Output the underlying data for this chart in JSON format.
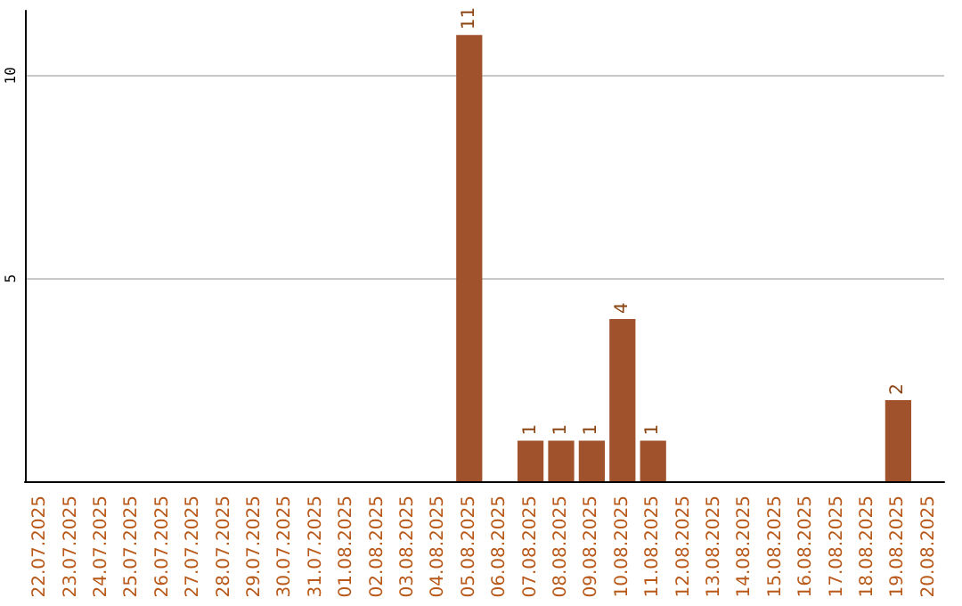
{
  "chart_data": {
    "type": "bar",
    "categories": [
      "22.07.2025",
      "23.07.2025",
      "24.07.2025",
      "25.07.2025",
      "26.07.2025",
      "27.07.2025",
      "28.07.2025",
      "29.07.2025",
      "30.07.2025",
      "31.07.2025",
      "01.08.2025",
      "02.08.2025",
      "03.08.2025",
      "04.08.2025",
      "05.08.2025",
      "06.08.2025",
      "07.08.2025",
      "08.08.2025",
      "09.08.2025",
      "10.08.2025",
      "11.08.2025",
      "12.08.2025",
      "13.08.2025",
      "14.08.2025",
      "15.08.2025",
      "16.08.2025",
      "17.08.2025",
      "18.08.2025",
      "19.08.2025",
      "20.08.2025"
    ],
    "values": [
      null,
      null,
      null,
      null,
      null,
      null,
      null,
      null,
      null,
      null,
      null,
      null,
      null,
      null,
      11,
      null,
      1,
      1,
      1,
      4,
      1,
      null,
      null,
      null,
      null,
      null,
      null,
      null,
      2,
      null
    ],
    "color": "#a0522d",
    "ylim": [
      0,
      11.6
    ],
    "yticks": [
      5,
      10
    ],
    "grid": "y",
    "data_labels": true
  }
}
